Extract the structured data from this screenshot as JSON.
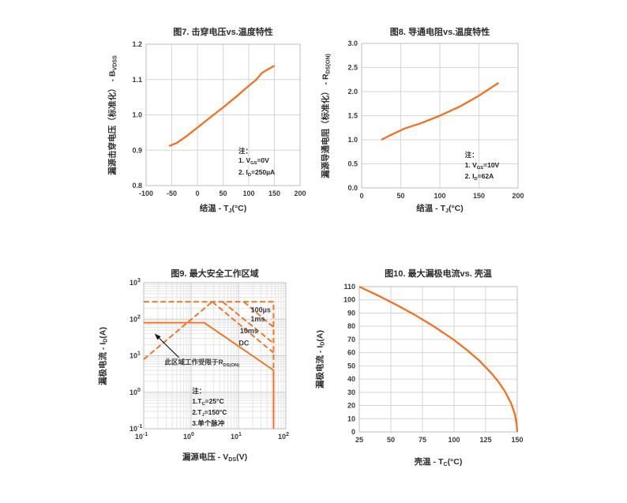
{
  "page": {
    "background": "#FFFFFF"
  },
  "colors": {
    "curve": "#F4701D",
    "grid_linear": "#D6D6D6",
    "grid_log_minor": "#E4E4E4",
    "grid_log_major": "#C9C9C9",
    "plot_border": "#BDBDBD",
    "text": "#3A3A3A",
    "annotation_arrow": "#141414"
  },
  "chart_data": [
    {
      "type": "line",
      "title": "图7. 击穿电压vs.温度特性",
      "xlabel": "结温 - T~J~(°C)",
      "ylabel": "漏源击穿电压（标准化） - B~VDSS~",
      "xlim": [
        -100,
        200
      ],
      "ylim": [
        0.8,
        1.2
      ],
      "x_ticks": [
        -100,
        -50,
        0,
        50,
        100,
        150,
        200
      ],
      "y_ticks": [
        0.8,
        0.9,
        1.0,
        1.1,
        1.2
      ],
      "y_tick_format": "1dp",
      "grid": true,
      "notes": [
        "注：",
        "1. V~GS~=0V",
        "2. I~D~=250µA"
      ],
      "notes_pos": {
        "fx": 0.6,
        "fy": 0.72
      },
      "series": [
        {
          "name": "bvdss-normalized",
          "dash": false,
          "points": [
            [
              -55,
              0.912
            ],
            [
              -40,
              0.921
            ],
            [
              -20,
              0.941
            ],
            [
              0,
              0.964
            ],
            [
              25,
              0.993
            ],
            [
              50,
              1.021
            ],
            [
              75,
              1.051
            ],
            [
              100,
              1.082
            ],
            [
              115,
              1.1
            ],
            [
              125,
              1.118
            ],
            [
              135,
              1.127
            ],
            [
              150,
              1.139
            ]
          ]
        }
      ]
    },
    {
      "type": "line",
      "title": "图8. 导通电阻vs.温度特性",
      "xlabel": "结温 - T~J~(°C)",
      "ylabel": "漏源导通电阻（标准化） - R~DS(ON)~",
      "xlim": [
        0,
        200
      ],
      "ylim": [
        0.0,
        3.0
      ],
      "x_ticks": [
        0,
        50,
        100,
        150,
        200
      ],
      "y_ticks": [
        0.0,
        0.5,
        1.0,
        1.5,
        2.0,
        2.5,
        3.0
      ],
      "y_tick_format": "1dp",
      "grid": true,
      "notes": [
        "注：",
        "1. V~GS~=10V",
        "2. I~D~=62A"
      ],
      "notes_pos": {
        "fx": 0.66,
        "fy": 0.74
      },
      "series": [
        {
          "name": "rdson-normalized",
          "dash": false,
          "points": [
            [
              25,
              1.0
            ],
            [
              40,
              1.12
            ],
            [
              55,
              1.235
            ],
            [
              75,
              1.34
            ],
            [
              100,
              1.5
            ],
            [
              125,
              1.685
            ],
            [
              150,
              1.915
            ],
            [
              175,
              2.18
            ]
          ]
        }
      ]
    },
    {
      "type": "line",
      "title": "图9. 最大安全工作区域",
      "xlabel": "漏源电压 - V~DS~(V)",
      "ylabel": "漏极电流 - I~D~(A)",
      "x_scale": "log",
      "y_scale": "log",
      "xlim": [
        0.1,
        100
      ],
      "ylim": [
        0.1,
        1000
      ],
      "x_ticks": [
        0.1,
        1,
        10,
        100
      ],
      "y_ticks": [
        0.1,
        1,
        10,
        100,
        1000
      ],
      "grid": true,
      "notes": [
        "注：",
        "1.T~C~=25°C",
        "2.T~J~=150°C",
        "3.单个脉冲"
      ],
      "notes_pos": {
        "fx": 0.34,
        "fy": 0.71
      },
      "series": [
        {
          "name": "rdson-limit-line",
          "dash": true,
          "points": [
            [
              0.1,
              8
            ],
            [
              2.8,
              300
            ]
          ]
        },
        {
          "name": "pulsed-current-ceiling",
          "dash": true,
          "points": [
            [
              0.1,
              300
            ],
            [
              55,
              300
            ],
            [
              55,
              4
            ]
          ]
        },
        {
          "name": "100us-pulse",
          "dash": true,
          "points": [
            [
              13,
              300
            ],
            [
              55,
              60
            ]
          ]
        },
        {
          "name": "1ms-pulse",
          "dash": true,
          "points": [
            [
              4.6,
              300
            ],
            [
              55,
              22
            ]
          ]
        },
        {
          "name": "10ms-pulse",
          "dash": true,
          "points": [
            [
              2.8,
              300
            ],
            [
              55,
              12
            ]
          ]
        },
        {
          "name": "dc",
          "dash": false,
          "points": [
            [
              0.1,
              80
            ],
            [
              1.9,
              80
            ],
            [
              55,
              4
            ],
            [
              55,
              0.1
            ]
          ]
        }
      ],
      "curve_labels": [
        {
          "text": "100µs",
          "x": 48,
          "y": 155,
          "anchor": "end"
        },
        {
          "text": "1ms",
          "x": 36,
          "y": 88,
          "anchor": "end"
        },
        {
          "text": "10ms",
          "x": 26,
          "y": 41,
          "anchor": "end"
        },
        {
          "text": "DC",
          "x": 13,
          "y": 19,
          "anchor": "middle"
        }
      ],
      "annotation": {
        "text": "此区域工作受限于R~DS(ON)~",
        "text_x": 1.7,
        "text_y": 5.8,
        "arrow_from": [
          0.55,
          9
        ],
        "arrow_to": [
          0.17,
          40
        ]
      }
    },
    {
      "type": "line",
      "title": "图10. 最大漏极电流vs. 壳温",
      "xlabel": "壳温 - T~C~(°C)",
      "ylabel": "漏极电流 - I~D~(A)",
      "xlim": [
        25,
        150
      ],
      "ylim": [
        0,
        110
      ],
      "x_ticks": [
        25,
        50,
        75,
        100,
        125,
        150
      ],
      "y_ticks": [
        0,
        10,
        20,
        30,
        40,
        50,
        60,
        70,
        80,
        90,
        100,
        110
      ],
      "grid": true,
      "series": [
        {
          "name": "id-derating",
          "dash": false,
          "points": [
            [
              25,
              110
            ],
            [
              40,
              103.2
            ],
            [
              55,
              95.9
            ],
            [
              70,
              88.0
            ],
            [
              85,
              79.3
            ],
            [
              100,
              69.6
            ],
            [
              110,
              62.2
            ],
            [
              120,
              53.9
            ],
            [
              130,
              44.0
            ],
            [
              135,
              38.1
            ],
            [
              140,
              31.1
            ],
            [
              145,
              22.0
            ],
            [
              148,
              13.9
            ],
            [
              149.5,
              6.2
            ],
            [
              150,
              0
            ]
          ]
        }
      ]
    }
  ]
}
